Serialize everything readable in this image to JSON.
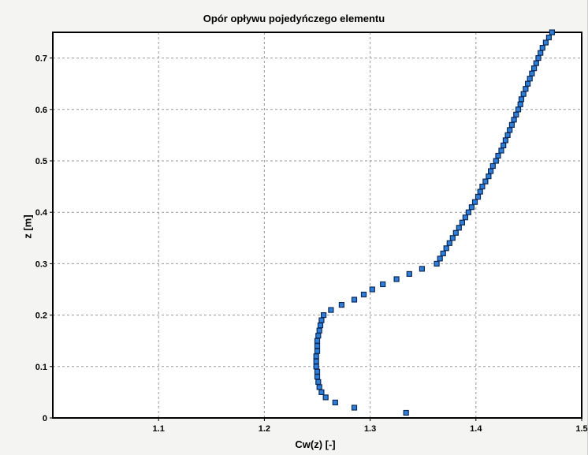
{
  "chart_data": {
    "type": "scatter",
    "title": "Opór opływu pojedyńczego elementu",
    "xlabel": "Cw(z) [-]",
    "ylabel": "z [m]",
    "xlim": [
      1.0,
      1.5
    ],
    "ylim": [
      0,
      0.75
    ],
    "x_ticks": [
      1.1,
      1.2,
      1.3,
      1.4,
      1.5
    ],
    "x_tick_labels": [
      "1.1",
      "1.2",
      "1.3",
      "1.4",
      "1.5"
    ],
    "y_ticks": [
      0,
      0.1,
      0.2,
      0.3,
      0.4,
      0.5,
      0.6,
      0.7
    ],
    "y_tick_labels": [
      "0",
      "0.1",
      "0.2",
      "0.3",
      "0.4",
      "0.5",
      "0.6",
      "0.7"
    ],
    "grid": true,
    "marker_color": "#2f7fd8",
    "marker_edge": "#0a2a5a",
    "points": [
      [
        1.334,
        0.01
      ],
      [
        1.285,
        0.02
      ],
      [
        1.267,
        0.03
      ],
      [
        1.258,
        0.04
      ],
      [
        1.254,
        0.05
      ],
      [
        1.252,
        0.06
      ],
      [
        1.251,
        0.07
      ],
      [
        1.25,
        0.08
      ],
      [
        1.25,
        0.09
      ],
      [
        1.249,
        0.1
      ],
      [
        1.249,
        0.11
      ],
      [
        1.249,
        0.12
      ],
      [
        1.25,
        0.13
      ],
      [
        1.25,
        0.14
      ],
      [
        1.25,
        0.15
      ],
      [
        1.251,
        0.16
      ],
      [
        1.252,
        0.17
      ],
      [
        1.253,
        0.18
      ],
      [
        1.254,
        0.19
      ],
      [
        1.256,
        0.2
      ],
      [
        1.263,
        0.21
      ],
      [
        1.273,
        0.22
      ],
      [
        1.285,
        0.23
      ],
      [
        1.294,
        0.24
      ],
      [
        1.302,
        0.25
      ],
      [
        1.312,
        0.26
      ],
      [
        1.325,
        0.27
      ],
      [
        1.337,
        0.28
      ],
      [
        1.349,
        0.29
      ],
      [
        1.363,
        0.3
      ],
      [
        1.366,
        0.31
      ],
      [
        1.369,
        0.32
      ],
      [
        1.372,
        0.33
      ],
      [
        1.375,
        0.34
      ],
      [
        1.378,
        0.35
      ],
      [
        1.381,
        0.36
      ],
      [
        1.384,
        0.37
      ],
      [
        1.387,
        0.38
      ],
      [
        1.39,
        0.39
      ],
      [
        1.393,
        0.4
      ],
      [
        1.396,
        0.41
      ],
      [
        1.399,
        0.42
      ],
      [
        1.402,
        0.43
      ],
      [
        1.404,
        0.44
      ],
      [
        1.406,
        0.45
      ],
      [
        1.409,
        0.46
      ],
      [
        1.412,
        0.47
      ],
      [
        1.414,
        0.48
      ],
      [
        1.416,
        0.49
      ],
      [
        1.419,
        0.5
      ],
      [
        1.421,
        0.51
      ],
      [
        1.424,
        0.52
      ],
      [
        1.426,
        0.53
      ],
      [
        1.428,
        0.54
      ],
      [
        1.43,
        0.55
      ],
      [
        1.432,
        0.56
      ],
      [
        1.434,
        0.57
      ],
      [
        1.436,
        0.58
      ],
      [
        1.438,
        0.59
      ],
      [
        1.44,
        0.6
      ],
      [
        1.442,
        0.61
      ],
      [
        1.443,
        0.62
      ],
      [
        1.445,
        0.63
      ],
      [
        1.447,
        0.64
      ],
      [
        1.449,
        0.65
      ],
      [
        1.451,
        0.66
      ],
      [
        1.453,
        0.67
      ],
      [
        1.455,
        0.68
      ],
      [
        1.457,
        0.69
      ],
      [
        1.459,
        0.7
      ],
      [
        1.461,
        0.71
      ],
      [
        1.463,
        0.72
      ],
      [
        1.466,
        0.73
      ],
      [
        1.469,
        0.74
      ],
      [
        1.472,
        0.75
      ]
    ]
  }
}
